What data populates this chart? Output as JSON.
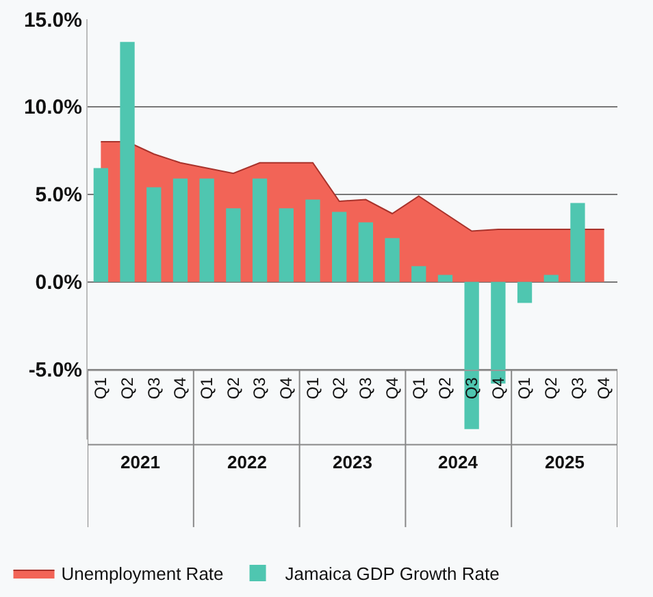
{
  "chart_data": {
    "type": "bar",
    "categories": [
      "Q1",
      "Q2",
      "Q3",
      "Q4",
      "Q1",
      "Q2",
      "Q3",
      "Q4",
      "Q1",
      "Q2",
      "Q3",
      "Q4",
      "Q1",
      "Q2",
      "Q3",
      "Q4",
      "Q1",
      "Q2",
      "Q3",
      "Q4"
    ],
    "series": [
      {
        "name": "Unemployment Rate",
        "type": "area",
        "color": "#f26457",
        "values": [
          8.0,
          8.0,
          7.3,
          6.8,
          6.5,
          6.2,
          6.8,
          6.8,
          6.8,
          4.6,
          4.7,
          3.9,
          4.9,
          3.9,
          2.9,
          3.0,
          3.0,
          3.0,
          3.0,
          3.0
        ]
      },
      {
        "name": "Jamaica GDP Growth Rate",
        "color": "#4fc6b0",
        "values": [
          6.5,
          13.7,
          5.4,
          5.9,
          5.9,
          4.2,
          5.9,
          4.2,
          4.7,
          4.0,
          3.4,
          2.5,
          0.9,
          0.4,
          -8.4,
          -5.8,
          -1.2,
          0.4,
          4.5,
          null
        ]
      }
    ],
    "annotations": [
      "2021",
      "2022",
      "2023",
      "2024",
      "2025"
    ],
    "ylim": [
      -9,
      15
    ],
    "yticks": [
      {
        "value": -5,
        "label": "-5.0%"
      },
      {
        "value": 0,
        "label": "0.0%"
      },
      {
        "value": 5,
        "label": "5.0%"
      },
      {
        "value": 10,
        "label": "10.0%"
      },
      {
        "value": 15,
        "label": "15.0%"
      }
    ],
    "grid": "y",
    "legend": "bottom"
  }
}
